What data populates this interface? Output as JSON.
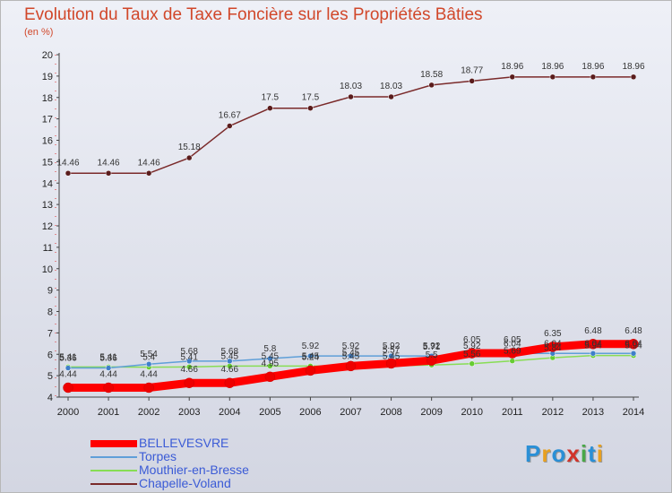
{
  "title": "Evolution du Taux de Taxe Foncière sur les Propriétés Bâties",
  "subtitle": "(en %)",
  "logo": {
    "letters": [
      "P",
      "r",
      "o",
      "x",
      "i",
      "t",
      "i"
    ],
    "colors": [
      "#2a8fd6",
      "#e8a020",
      "#2a8fd6",
      "#d1332a",
      "#48a848",
      "#2a8fd6",
      "#e8a020"
    ]
  },
  "chart_data": {
    "type": "line",
    "title": "Evolution du Taux de Taxe Foncière sur les Propriétés Bâties",
    "ylabel": "(en %)",
    "x": [
      "2000",
      "2001",
      "2002",
      "2003",
      "2004",
      "2005",
      "2006",
      "2007",
      "2008",
      "2009",
      "2010",
      "2011",
      "2012",
      "2013",
      "2014"
    ],
    "ylim": [
      4,
      20
    ],
    "yticks": [
      4,
      5,
      6,
      7,
      8,
      9,
      10,
      11,
      12,
      13,
      14,
      15,
      16,
      17,
      18,
      19,
      20
    ],
    "grid": false,
    "legend": "bottom-left",
    "series": [
      {
        "name": "BELLEVESVRE",
        "color": "#ff0000",
        "marker": "#ee0000",
        "width": 9,
        "values": [
          4.44,
          4.44,
          4.44,
          4.66,
          4.66,
          4.95,
          5.24,
          5.45,
          5.57,
          5.71,
          6.05,
          6.05,
          6.35,
          6.48,
          6.48
        ],
        "labels": [
          "4.44",
          "4.44",
          "4.44",
          "4.66",
          "4.66",
          "4.95",
          "5.24",
          "5.45",
          "5.57",
          "5.71",
          "6.05",
          "6.05",
          "6.35",
          "6.48",
          "6.48"
        ]
      },
      {
        "name": "Torpes",
        "color": "#5f9fd8",
        "marker": "#3f7fc8",
        "width": 1.5,
        "values": [
          5.36,
          5.36,
          5.54,
          5.68,
          5.68,
          5.8,
          5.92,
          5.92,
          5.92,
          5.92,
          5.92,
          6.04,
          6.04,
          6.04,
          6.04
        ],
        "labels": [
          "5.36",
          "5.36",
          "5.54",
          "5.68",
          "5.68",
          "5.8",
          "5.92",
          "5.92",
          "5.92",
          "5.92",
          "5.92",
          "6.04",
          "6.04",
          "6.04",
          "6.04"
        ]
      },
      {
        "name": "Mouthier-en-Bresse",
        "color": "#88dd55",
        "marker": "#66cc33",
        "width": 1.5,
        "values": [
          5.41,
          5.41,
          5.4,
          5.41,
          5.45,
          5.45,
          5.45,
          5.45,
          5.45,
          5.5,
          5.56,
          5.69,
          5.84,
          5.94,
          5.94
        ],
        "labels": [
          "5.41",
          "5.41",
          "5.4",
          "5.41",
          "5.45",
          "5.45",
          "5.45",
          "5.45",
          "5.45",
          "5.5",
          "5.56",
          "5.69",
          "5.84",
          "5.94",
          "5.94"
        ]
      },
      {
        "name": "Chapelle-Voland",
        "color": "#7a2a2a",
        "marker": "#5a1c1c",
        "width": 1.5,
        "values": [
          14.46,
          14.46,
          14.46,
          15.18,
          16.67,
          17.5,
          17.5,
          18.03,
          18.03,
          18.58,
          18.77,
          18.96,
          18.96,
          18.96,
          18.96
        ],
        "labels": [
          "14.46",
          "14.46",
          "14.46",
          "15.18",
          "16.67",
          "17.5",
          "17.5",
          "18.03",
          "18.03",
          "18.58",
          "18.77",
          "18.96",
          "18.96",
          "18.96",
          "18.96"
        ]
      }
    ]
  }
}
